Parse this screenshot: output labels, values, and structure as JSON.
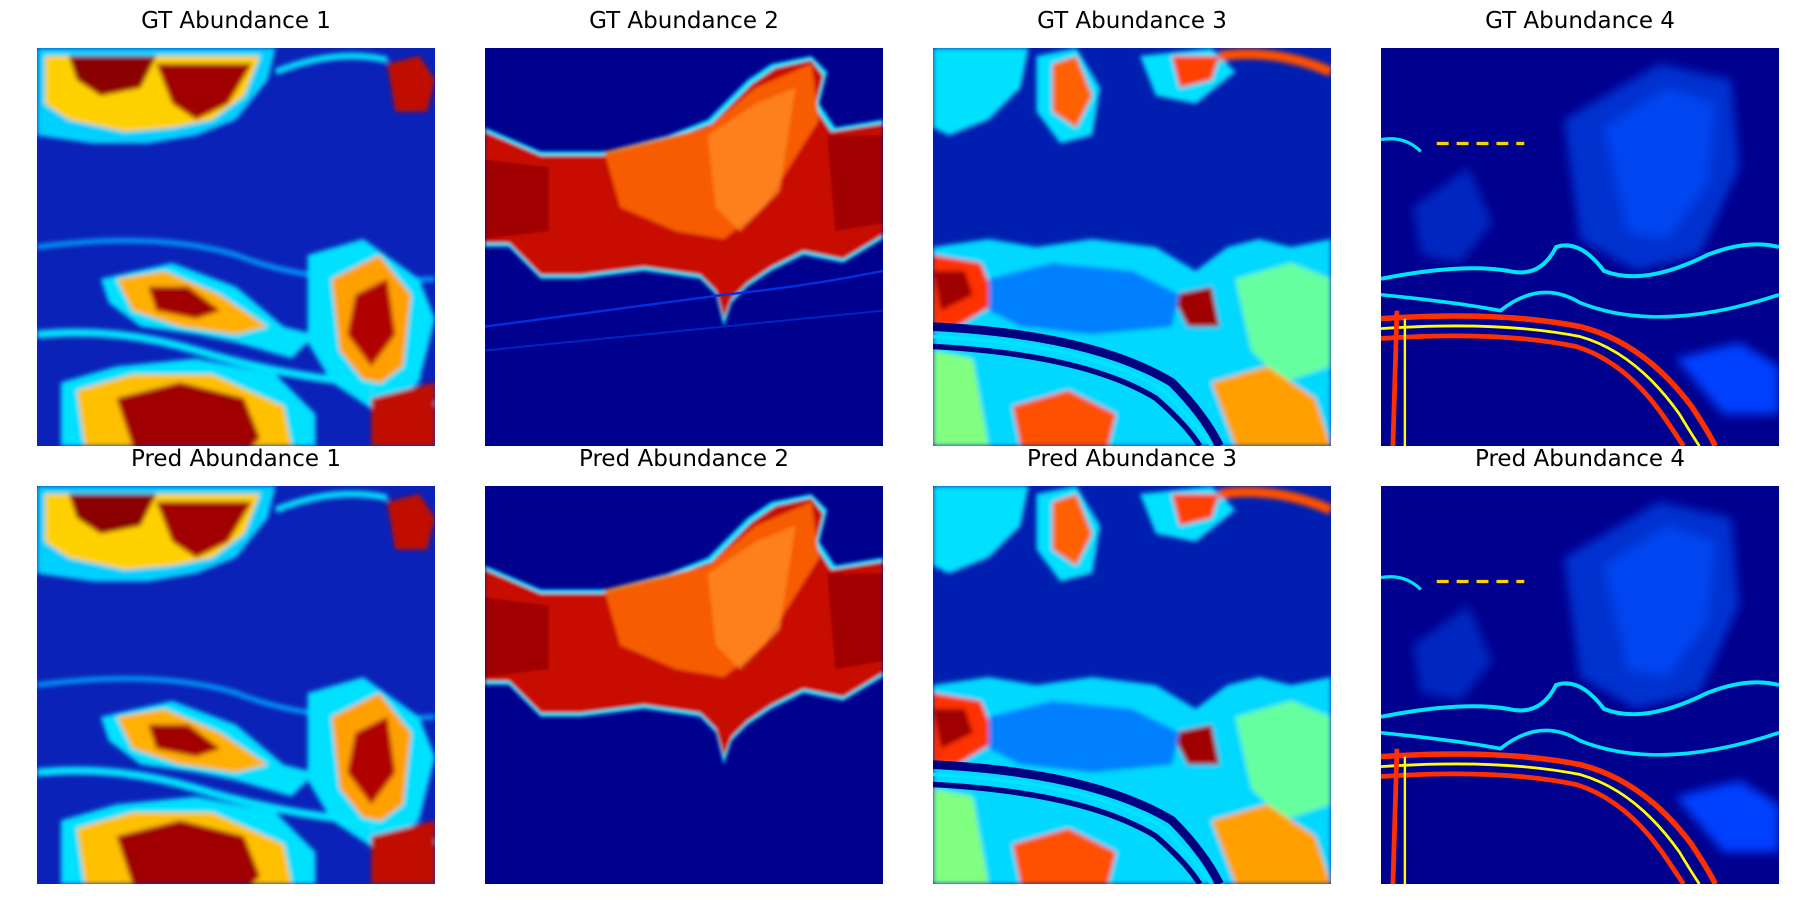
{
  "figure": {
    "rows": [
      {
        "panels": [
          {
            "title": "GT Abundance 1",
            "map": "abundance-1"
          },
          {
            "title": "GT Abundance 2",
            "map": "abundance-2"
          },
          {
            "title": "GT Abundance 3",
            "map": "abundance-3"
          },
          {
            "title": "GT Abundance 4",
            "map": "abundance-4"
          }
        ]
      },
      {
        "panels": [
          {
            "title": "Pred Abundance 1",
            "map": "abundance-1"
          },
          {
            "title": "Pred Abundance 2",
            "map": "abundance-2"
          },
          {
            "title": "Pred Abundance 3",
            "map": "abundance-3"
          },
          {
            "title": "Pred Abundance 4",
            "map": "abundance-4"
          }
        ]
      }
    ],
    "colormap": {
      "name": "jet",
      "low": "#00008f",
      "mid_blue": "#0050ff",
      "cyan": "#00e5ff",
      "yellow": "#ffff00",
      "orange": "#ff7f00",
      "red": "#ff2a00",
      "high": "#800000"
    }
  }
}
